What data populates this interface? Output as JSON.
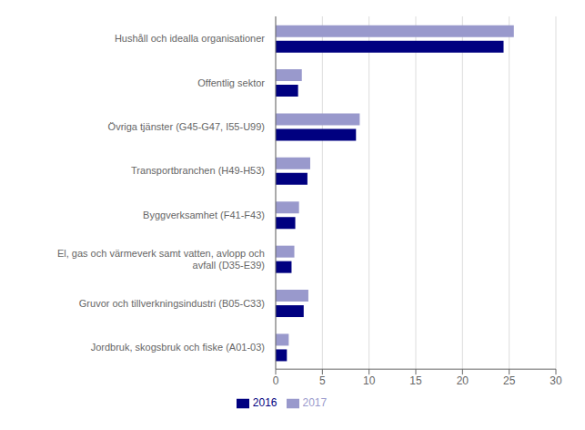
{
  "chart_data": {
    "type": "bar",
    "orientation": "horizontal",
    "categories": [
      "Jordbruk, skogsbruk och fiske (A01-03)",
      "Gruvor och tillverkningsindustri (B05-C33)",
      "El, gas och värmeverk samt vatten, avlopp och\navfall (D35-E39)",
      "Byggverksamhet (F41-F43)",
      "Transportbranchen (H49-H53)",
      "Övriga tjänster (G45-G47, I55-U99)",
      "Offentlig sektor",
      "Hushåll och idealla organisationer"
    ],
    "series": [
      {
        "name": "2017",
        "color": "#9999cc",
        "values": [
          1.4,
          3.5,
          2.0,
          2.5,
          3.7,
          9.0,
          2.8,
          25.5
        ]
      },
      {
        "name": "2016",
        "color": "#000080",
        "values": [
          1.2,
          3.0,
          1.7,
          2.1,
          3.4,
          8.6,
          2.4,
          24.4
        ]
      }
    ],
    "xlim": [
      0,
      30
    ],
    "xticks": [
      0,
      5,
      10,
      15,
      20,
      25,
      30
    ],
    "grid": true,
    "legend": "bottom"
  }
}
